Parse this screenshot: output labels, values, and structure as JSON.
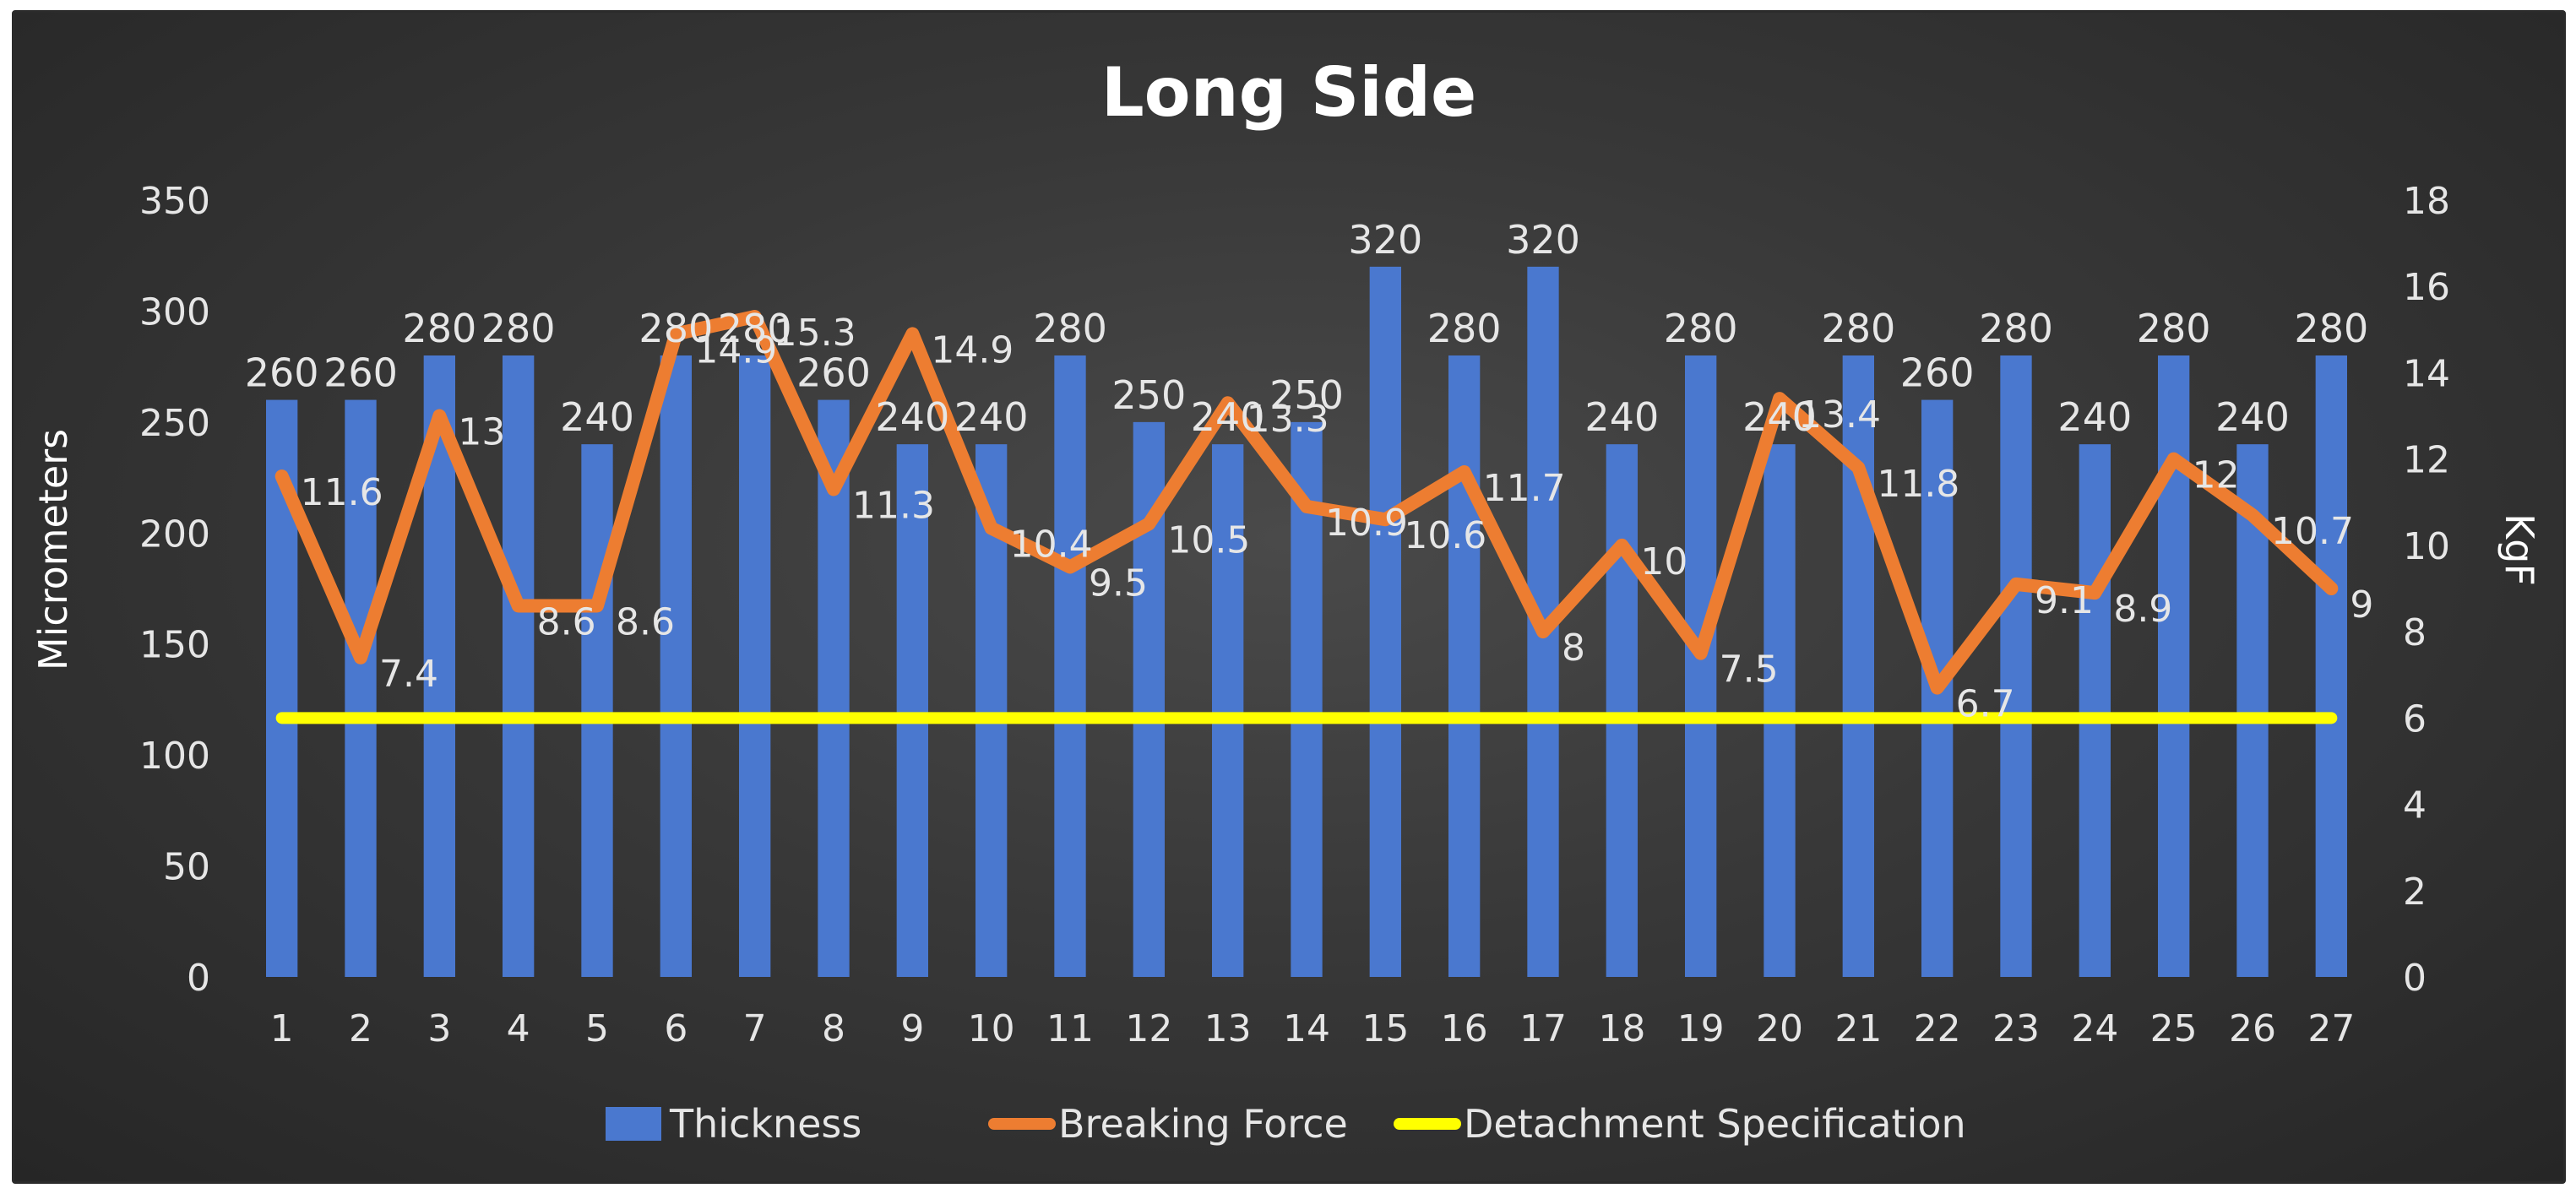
{
  "chart_data": {
    "type": "bar",
    "title": "Long Side",
    "categories": [
      "1",
      "2",
      "3",
      "4",
      "5",
      "6",
      "7",
      "8",
      "9",
      "10",
      "11",
      "12",
      "13",
      "14",
      "15",
      "16",
      "17",
      "18",
      "19",
      "20",
      "21",
      "22",
      "23",
      "24",
      "25",
      "26",
      "27"
    ],
    "series": [
      {
        "name": "Thickness",
        "type": "bar",
        "axis": "left",
        "color": "#4a78cf",
        "values": [
          260,
          260,
          280,
          280,
          240,
          280,
          280,
          260,
          240,
          240,
          280,
          250,
          240,
          250,
          320,
          280,
          320,
          240,
          280,
          240,
          280,
          260,
          280,
          240,
          280,
          240,
          280
        ]
      },
      {
        "name": "Breaking Force",
        "type": "line",
        "axis": "right",
        "color": "#ed7d31",
        "values": [
          11.6,
          7.4,
          13,
          8.6,
          8.6,
          14.9,
          15.3,
          11.3,
          14.9,
          10.4,
          9.5,
          10.5,
          13.3,
          10.9,
          10.6,
          11.7,
          8,
          10,
          7.5,
          13.4,
          11.8,
          6.7,
          9.1,
          8.9,
          12,
          10.7,
          9
        ]
      },
      {
        "name": "Detachment Specification",
        "type": "line",
        "axis": "right",
        "color": "#ffff00",
        "values": [
          6,
          6,
          6,
          6,
          6,
          6,
          6,
          6,
          6,
          6,
          6,
          6,
          6,
          6,
          6,
          6,
          6,
          6,
          6,
          6,
          6,
          6,
          6,
          6,
          6,
          6,
          6
        ]
      }
    ],
    "ylabel": "Micrometers",
    "y2label": "KgF",
    "ylim": [
      0,
      350
    ],
    "yticks": [
      0,
      50,
      100,
      150,
      200,
      250,
      300,
      350
    ],
    "y2lim": [
      0,
      18
    ],
    "y2ticks": [
      0,
      2,
      4,
      6,
      8,
      10,
      12,
      14,
      16,
      18
    ],
    "grid": false,
    "legend": "bottom",
    "colors": {
      "background": "#3a3a3a",
      "text": "#e6e6e6",
      "title": "#ffffff"
    }
  }
}
